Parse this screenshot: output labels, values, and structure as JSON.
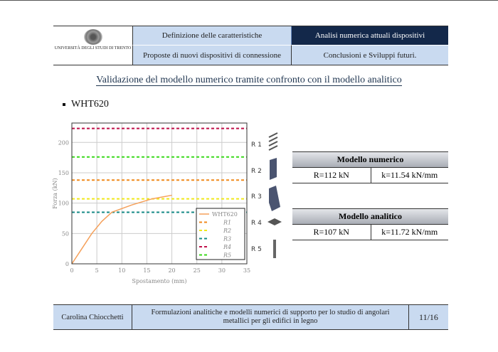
{
  "header": {
    "logo_text": "UNIVERSITÀ DEGLI STUDI DI TRENTO",
    "nav": [
      {
        "label": "Definizione delle caratteristiche",
        "active": false
      },
      {
        "label": "Analisi numerica attuali dispositivi",
        "active": true
      },
      {
        "label": "Proposte di nuovi dispositivi di connessione",
        "active": false
      },
      {
        "label": "Conclusioni e Sviluppi futuri.",
        "active": false
      }
    ]
  },
  "slide": {
    "title": "Validazione del modello numerico tramite confronto con il modello analitico",
    "bullet": "WHT620"
  },
  "components": [
    {
      "label": "R 1",
      "icon": "screws-icon"
    },
    {
      "label": "R 2",
      "icon": "plate-icon"
    },
    {
      "label": "R 3",
      "icon": "angle-bracket-icon"
    },
    {
      "label": "R 4",
      "icon": "washer-icon"
    },
    {
      "label": "R 5",
      "icon": "anchor-bolt-icon"
    }
  ],
  "tables": [
    {
      "title": "Modello numerico",
      "R": "R=112 kN",
      "k": "k=11.54 kN/mm"
    },
    {
      "title": "Modello analitico",
      "R": "R=107 kN",
      "k": "k=11.72 kN/mm"
    }
  ],
  "footer": {
    "author": "Carolina Chiocchetti",
    "thesis": "Formulazioni analitiche e modelli numerici di supporto per lo studio di angolari metallici per gli edifici in legno",
    "page": "11/16"
  },
  "chart_data": {
    "type": "line",
    "xlabel": "Spostamento (mm)",
    "ylabel": "Forza (kN)",
    "xlim": [
      0,
      35
    ],
    "ylim": [
      0,
      232
    ],
    "xticks": [
      0,
      5,
      10,
      15,
      20,
      25,
      30,
      35
    ],
    "yticks": [
      0,
      50,
      100,
      150,
      200
    ],
    "grid": true,
    "legend_position": "bottom-right",
    "series": [
      {
        "name": "WHT620",
        "color": "#f5a05a",
        "x": [
          0,
          2,
          4,
          6,
          8,
          10,
          12,
          14,
          16,
          18,
          20
        ],
        "y": [
          0,
          25,
          50,
          70,
          85,
          91,
          97,
          102,
          107,
          110,
          113
        ]
      }
    ],
    "hlines": [
      {
        "name": "R1",
        "value": 138,
        "color": "#f08a1c"
      },
      {
        "name": "R2",
        "value": 107,
        "color": "#f0e81a"
      },
      {
        "name": "R3",
        "value": 85,
        "color": "#168a86"
      },
      {
        "name": "R4",
        "value": 223,
        "color": "#c0104a"
      },
      {
        "name": "R5",
        "value": 176,
        "color": "#3ad81a"
      }
    ]
  }
}
